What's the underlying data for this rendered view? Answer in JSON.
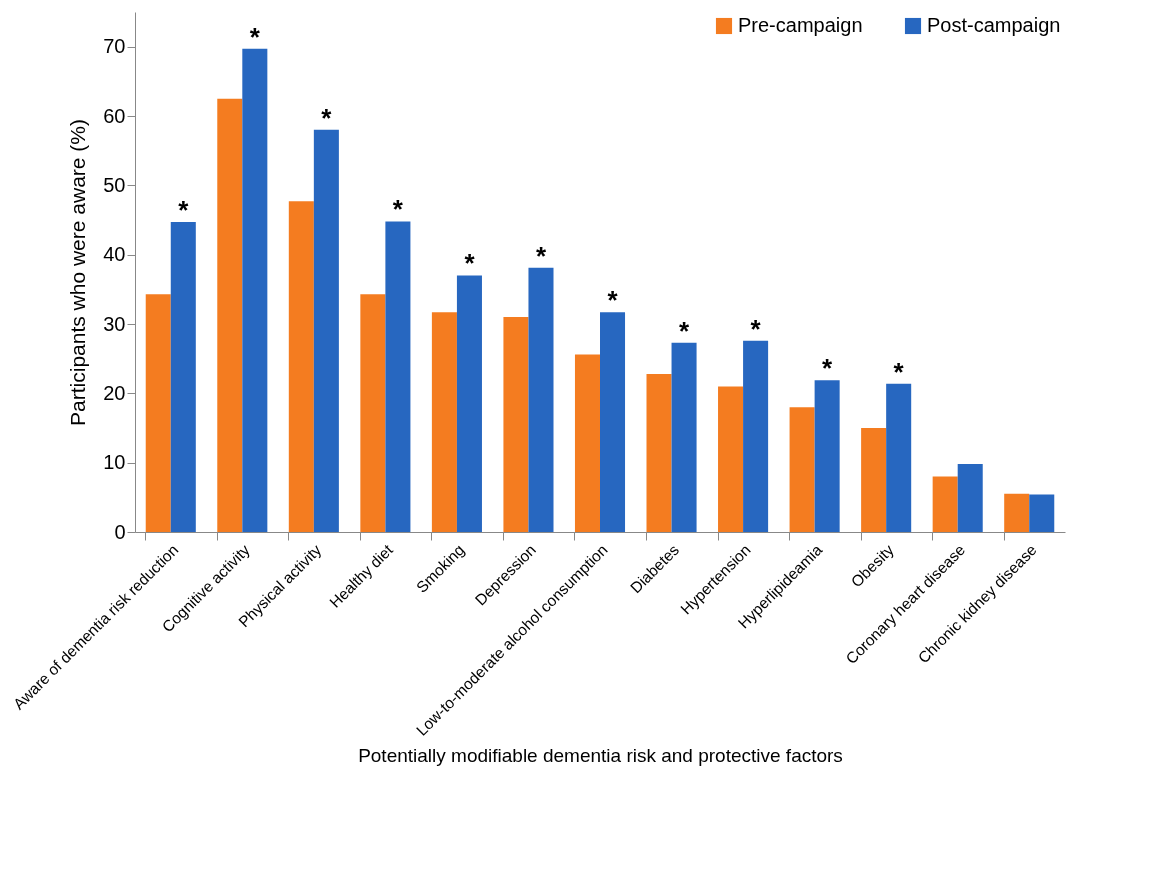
{
  "chart_data": {
    "type": "bar",
    "xlabel": "Potentially modifiable dementia risk and protective factors",
    "ylabel": "Participants who were aware (%)",
    "categories": [
      "Aware of dementia risk reduction",
      "Cognitive activity",
      "Physical activity",
      "Healthy diet",
      "Smoking",
      "Depression",
      "Low-to-moderate alcohol consumption",
      "Diabetes",
      "Hypertension",
      "Hyperlipideamia",
      "Obesity",
      "Coronary heart disease",
      "Chronic kidney disease"
    ],
    "series": [
      {
        "name": "Pre-campaign",
        "color": "#f47c20",
        "values": [
          34.3,
          62.5,
          47.7,
          34.3,
          31.7,
          31.0,
          25.6,
          22.8,
          21.0,
          18.0,
          15.0,
          8.0,
          5.5
        ]
      },
      {
        "name": "Post-campaign",
        "color": "#2767c0",
        "values": [
          44.7,
          69.7,
          58.0,
          44.8,
          37.0,
          38.1,
          31.7,
          27.3,
          27.6,
          21.9,
          21.4,
          9.8,
          5.4
        ]
      }
    ],
    "ylim": [
      0,
      75
    ],
    "yticks": [
      0,
      10,
      20,
      30,
      40,
      50,
      60,
      70
    ],
    "legend": "top right",
    "annotations": [
      {
        "text": "*",
        "x": "Aware of dementia risk reduction",
        "y": 44.7
      },
      {
        "text": "*",
        "x": "Cognitive activity",
        "y": 69.7
      },
      {
        "text": "*",
        "x": "Physical activity",
        "y": 58.0
      },
      {
        "text": "*",
        "x": "Healthy diet",
        "y": 44.8
      },
      {
        "text": "*",
        "x": "Smoking",
        "y": 37.0
      },
      {
        "text": "*",
        "x": "Depression",
        "y": 38.1
      },
      {
        "text": "*",
        "x": "Low-to-moderate alcohol consumption",
        "y": 31.7
      },
      {
        "text": "*",
        "x": "Diabetes",
        "y": 27.3
      },
      {
        "text": "*",
        "x": "Hypertension",
        "y": 27.6
      },
      {
        "text": "*",
        "x": "Hyperlipideamia",
        "y": 21.9
      },
      {
        "text": "*",
        "x": "Obesity",
        "y": 21.4
      }
    ]
  }
}
